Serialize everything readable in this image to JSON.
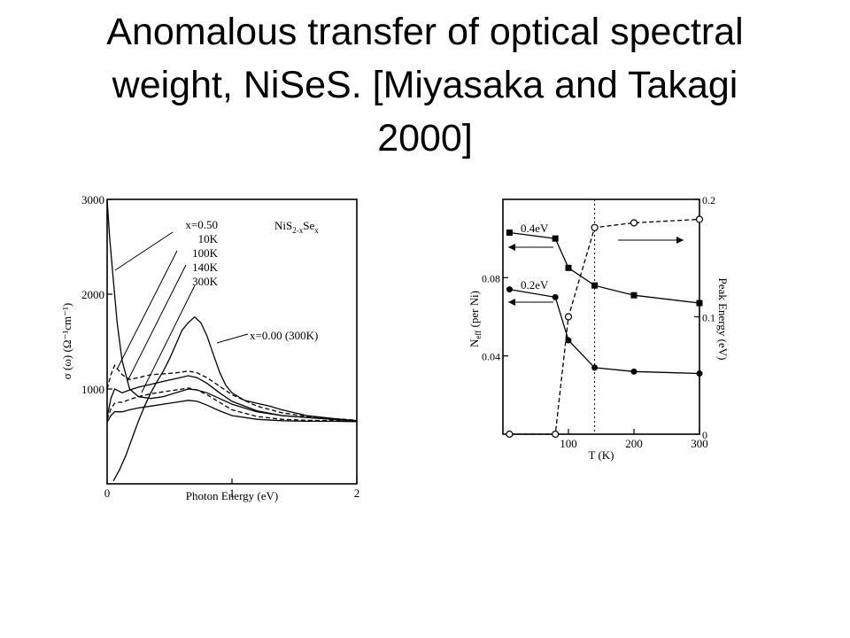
{
  "slide": {
    "title_lines": [
      "Anomalous transfer of optical spectral",
      "weight, NiSeS. [Miyasaka and Takagi",
      "2000]"
    ]
  },
  "chart_data": [
    {
      "type": "line",
      "panel": "left",
      "xlabel": "Photon Energy (eV)",
      "ylabel": "σ (ω) (Ω⁻¹cm⁻¹)",
      "xlim": [
        0,
        2
      ],
      "ylim": [
        0,
        3000
      ],
      "x_ticks": [
        "0",
        "1",
        "2"
      ],
      "y_ticks": [
        "1000",
        "2000",
        "3000"
      ],
      "compound_label": {
        "main": "NiS",
        "sub1": "2-x",
        "mid": "Se",
        "sub2": "x"
      },
      "legend_label_group": [
        "x=0.50",
        "10K",
        "100K",
        "140K",
        "300K"
      ],
      "annotation": "x=0.00 (300K)",
      "series": [
        {
          "style": "solid",
          "x": [
            0.0,
            0.02,
            0.05,
            0.08,
            0.12,
            0.18,
            0.25,
            0.35,
            0.45,
            0.55,
            0.65,
            0.72,
            0.8,
            0.9,
            1.0,
            1.2,
            1.4,
            1.6,
            1.8,
            2.0
          ],
          "y": [
            3000,
            2600,
            2150,
            1700,
            1300,
            1000,
            920,
            900,
            920,
            960,
            1000,
            990,
            960,
            900,
            840,
            760,
            720,
            700,
            680,
            660
          ]
        },
        {
          "style": "dashed",
          "x": [
            0.0,
            0.03,
            0.06,
            0.09,
            0.12,
            0.18,
            0.25,
            0.35,
            0.45,
            0.55,
            0.65,
            0.72,
            0.8,
            0.9,
            1.0,
            1.2,
            1.4,
            1.6,
            1.8,
            2.0
          ],
          "y": [
            1000,
            1150,
            1250,
            1200,
            1150,
            1100,
            1120,
            1150,
            1160,
            1170,
            1190,
            1170,
            1120,
            1030,
            940,
            820,
            750,
            710,
            690,
            670
          ]
        },
        {
          "style": "solid",
          "x": [
            0.0,
            0.03,
            0.06,
            0.09,
            0.12,
            0.18,
            0.25,
            0.35,
            0.45,
            0.55,
            0.65,
            0.72,
            0.8,
            0.9,
            1.0,
            1.2,
            1.4,
            1.6,
            1.8,
            2.0
          ],
          "y": [
            700,
            900,
            1000,
            980,
            960,
            990,
            1020,
            1050,
            1080,
            1110,
            1140,
            1120,
            1060,
            960,
            870,
            770,
            720,
            700,
            680,
            665
          ]
        },
        {
          "style": "dashed",
          "x": [
            0.0,
            0.03,
            0.06,
            0.09,
            0.12,
            0.18,
            0.25,
            0.35,
            0.45,
            0.55,
            0.65,
            0.72,
            0.8,
            0.9,
            1.0,
            1.2,
            1.4,
            1.6,
            1.8,
            2.0
          ],
          "y": [
            680,
            790,
            850,
            860,
            860,
            890,
            920,
            950,
            970,
            990,
            1010,
            990,
            940,
            860,
            780,
            710,
            680,
            670,
            665,
            660
          ]
        },
        {
          "style": "solid",
          "x": [
            0.0,
            0.03,
            0.06,
            0.09,
            0.12,
            0.18,
            0.25,
            0.35,
            0.45,
            0.55,
            0.65,
            0.72,
            0.8,
            0.9,
            1.0,
            1.2,
            1.4,
            1.6,
            1.8,
            2.0
          ],
          "y": [
            650,
            720,
            760,
            760,
            760,
            780,
            800,
            820,
            840,
            860,
            880,
            870,
            830,
            770,
            720,
            680,
            665,
            660,
            660,
            655
          ]
        },
        {
          "style": "solid",
          "x": [
            0.05,
            0.1,
            0.15,
            0.2,
            0.25,
            0.3,
            0.35,
            0.4,
            0.45,
            0.5,
            0.55,
            0.6,
            0.65,
            0.7,
            0.75,
            0.8,
            0.85,
            0.9,
            0.95,
            1.0,
            1.1,
            1.2,
            1.3,
            1.4,
            1.6,
            1.8,
            2.0
          ],
          "y": [
            30,
            150,
            300,
            480,
            660,
            820,
            960,
            1080,
            1190,
            1320,
            1470,
            1620,
            1700,
            1760,
            1700,
            1560,
            1370,
            1180,
            1040,
            960,
            880,
            850,
            820,
            780,
            720,
            690,
            665
          ]
        }
      ]
    },
    {
      "type": "scatter",
      "panel": "right",
      "xlabel": "T (K)",
      "ylabel": "Neff (per Ni)",
      "ylabel_main": "N",
      "ylabel_sub": "eff",
      "ylabel_rest": " (per Ni)",
      "y2label": "Peak Energy (eV)",
      "xlim": [
        0,
        300
      ],
      "ylim": [
        0,
        0.12
      ],
      "y2lim": [
        0,
        0.2
      ],
      "x_ticks": [
        "100",
        "200",
        "300"
      ],
      "y_ticks": [
        "0.04",
        "0.08"
      ],
      "y2_ticks": [
        "0",
        "0.1",
        "0.2"
      ],
      "series": [
        {
          "name": "0.4eV",
          "marker": "filled-square",
          "axis": "left",
          "x": [
            10,
            80,
            100,
            140,
            200,
            300
          ],
          "y": [
            0.103,
            0.1,
            0.085,
            0.076,
            0.071,
            0.067
          ]
        },
        {
          "name": "0.2eV",
          "marker": "filled-circle",
          "axis": "left",
          "x": [
            10,
            80,
            100,
            140,
            200,
            300
          ],
          "y": [
            0.074,
            0.07,
            0.048,
            0.034,
            0.032,
            0.031
          ]
        },
        {
          "marker": "open-circle",
          "axis": "right",
          "x": [
            10,
            80,
            100,
            140,
            200,
            300
          ],
          "y": [
            0.0,
            0.0,
            0.1,
            0.176,
            0.18,
            0.183
          ]
        }
      ],
      "reference_line_x": 140
    }
  ]
}
